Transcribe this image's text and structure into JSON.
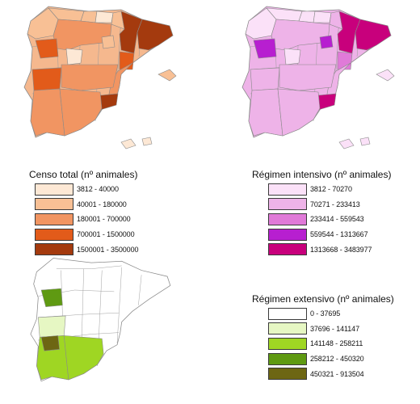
{
  "legends": {
    "censo_total": {
      "title": "Censo total (nº animales)",
      "classes": [
        {
          "range": "3812 - 40000",
          "color": "#fde8d5"
        },
        {
          "range": "40001 - 180000",
          "color": "#f8c095"
        },
        {
          "range": "180001 - 700000",
          "color": "#f19562"
        },
        {
          "range": "700001 - 1500000",
          "color": "#e25b1a"
        },
        {
          "range": "1500001 - 3500000",
          "color": "#a43a0e"
        }
      ]
    },
    "regimen_intensivo": {
      "title": "Régimen intensivo (nº animales)",
      "classes": [
        {
          "range": "3812 - 70270",
          "color": "#fbe1f8"
        },
        {
          "range": "70271 - 233413",
          "color": "#eeb3e8"
        },
        {
          "range": "233414 - 559543",
          "color": "#e07ad8"
        },
        {
          "range": "559544 - 1313667",
          "color": "#b71fd0"
        },
        {
          "range": "1313668 - 3483977",
          "color": "#c8007c"
        }
      ]
    },
    "regimen_extensivo": {
      "title": "Régimen extensivo (nº animales)",
      "classes": [
        {
          "range": "0 - 37695",
          "color": "#ffffff"
        },
        {
          "range": "37696 - 141147",
          "color": "#e6f7c3"
        },
        {
          "range": "141148 - 258211",
          "color": "#9fd623"
        },
        {
          "range": "258212 - 450320",
          "color": "#5f9a12"
        },
        {
          "range": "450321 - 913504",
          "color": "#6d6613"
        }
      ]
    }
  },
  "maps": {
    "censo_total": {
      "base_color": "#f5b88e",
      "regions": [
        {
          "shape": "galicia",
          "class": 1
        },
        {
          "shape": "asturias",
          "class": 1
        },
        {
          "shape": "cantabria",
          "class": 1
        },
        {
          "shape": "pais-vasco",
          "class": 0
        },
        {
          "shape": "navarra",
          "class": 1
        },
        {
          "shape": "aragon-n",
          "class": 4
        },
        {
          "shape": "cataluna",
          "class": 4
        },
        {
          "shape": "castilla-leon",
          "class": 2
        },
        {
          "shape": "soria",
          "class": 1
        },
        {
          "shape": "madrid",
          "class": 0
        },
        {
          "shape": "teruel",
          "class": 3
        },
        {
          "shape": "valencia",
          "class": 2
        },
        {
          "shape": "extremadura",
          "class": 3
        },
        {
          "shape": "castilla-mancha",
          "class": 2
        },
        {
          "shape": "murcia",
          "class": 4
        },
        {
          "shape": "andalucia-w",
          "class": 2
        },
        {
          "shape": "andalucia-e",
          "class": 2
        },
        {
          "shape": "salamanca",
          "class": 3
        },
        {
          "shape": "baleares",
          "class": 1
        },
        {
          "shape": "canarias",
          "class": 0
        }
      ]
    },
    "regimen_intensivo": {
      "base_color": "#eeb3e8",
      "regions": [
        {
          "shape": "galicia",
          "class": 0
        },
        {
          "shape": "asturias",
          "class": 0
        },
        {
          "shape": "cantabria",
          "class": 0
        },
        {
          "shape": "pais-vasco",
          "class": 0
        },
        {
          "shape": "navarra",
          "class": 1
        },
        {
          "shape": "aragon-n",
          "class": 4
        },
        {
          "shape": "cataluna",
          "class": 4
        },
        {
          "shape": "castilla-leon",
          "class": 1
        },
        {
          "shape": "soria",
          "class": 3
        },
        {
          "shape": "madrid",
          "class": 0
        },
        {
          "shape": "teruel",
          "class": 2
        },
        {
          "shape": "valencia",
          "class": 1
        },
        {
          "shape": "extremadura",
          "class": 1
        },
        {
          "shape": "castilla-mancha",
          "class": 1
        },
        {
          "shape": "murcia",
          "class": 4
        },
        {
          "shape": "andalucia-w",
          "class": 1
        },
        {
          "shape": "andalucia-e",
          "class": 1
        },
        {
          "shape": "salamanca",
          "class": 3
        },
        {
          "shape": "baleares",
          "class": 0
        },
        {
          "shape": "canarias",
          "class": 0
        }
      ]
    },
    "regimen_extensivo": {
      "base_color": "#ffffff",
      "regions": [
        {
          "shape": "salamanca",
          "class": 3
        },
        {
          "shape": "extremadura",
          "class": 1
        },
        {
          "shape": "andalucia-w",
          "class": 2
        },
        {
          "shape": "andalucia-e",
          "class": 2
        },
        {
          "shape": "badajoz",
          "class": 4
        }
      ]
    }
  }
}
